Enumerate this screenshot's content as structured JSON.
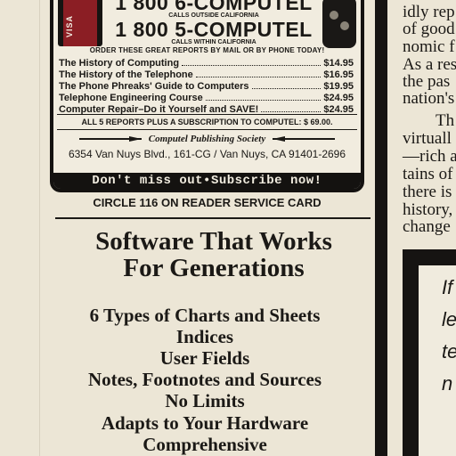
{
  "ad": {
    "card_label": "VISA",
    "phone1": "1 800 6-COMPUTEL",
    "phone1_sub": "CALLS OUTSIDE CALIFORNIA",
    "phone2": "1 800 5-COMPUTEL",
    "phone2_sub": "CALLS WITHIN CALIFORNIA",
    "order_heading": "ORDER THESE GREAT REPORTS BY MAIL OR BY PHONE TODAY!",
    "reports": [
      {
        "title": "The History of Computing",
        "price": "$14.95"
      },
      {
        "title": "The History of the Telephone",
        "price": "$16.95"
      },
      {
        "title": "The Phone Phreaks' Guide to Computers",
        "price": "$19.95"
      },
      {
        "title": "Telephone Engineering Course",
        "price": "$24.95"
      },
      {
        "title": "Computer Repair–Do it Yourself and SAVE!",
        "price": "$24.95"
      }
    ],
    "bundle": "ALL 5 REPORTS PLUS A SUBSCRIPTION TO COMPUTEL: $ 69.00.",
    "society": "Computel Publishing Society",
    "address": "6354 Van Nuys Blvd., 161-CG / Van Nuys, CA 91401-2696",
    "subscribe": "Don't miss out•Subscribe now!"
  },
  "reader_service": "CIRCLE 116 ON READER SERVICE CARD",
  "software": {
    "title_line1": "Software That Works",
    "title_line2": "For Generations",
    "features": [
      "6 Types of Charts and Sheets",
      "Indices",
      "User Fields",
      "Notes, Footnotes and Sources",
      "No Limits",
      "Adapts to Your Hardware",
      "Comprehensive"
    ]
  },
  "right_column": {
    "lines": [
      "idly rep",
      "of good",
      "nomic f",
      "As a res",
      "the pas",
      "nation's",
      "Th",
      "virtuall",
      "—rich a",
      "tains of",
      "there is",
      "history,",
      "change"
    ],
    "inset_words": [
      "If",
      "le",
      "te",
      "n"
    ]
  },
  "colors": {
    "paper": "#ece6d6",
    "ink": "#1b1916",
    "card_stripe": "#8b1e24"
  }
}
